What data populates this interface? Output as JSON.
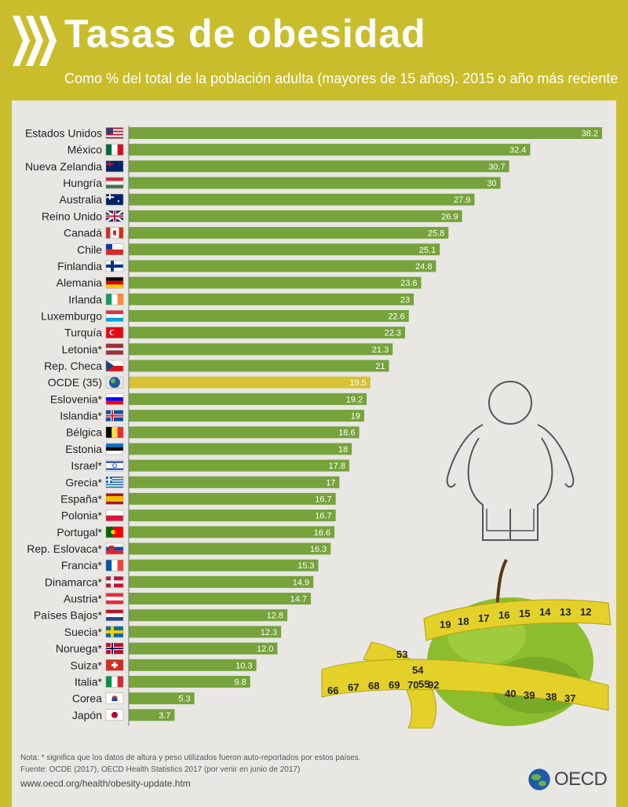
{
  "header": {
    "title": "Tasas de obesidad",
    "subtitle": "Como % del total de la población adulta (mayores de 15 años). 2015 o año más reciente"
  },
  "colors": {
    "header_bg": "#c9bd2b",
    "panel_bg": "#e8e7e3",
    "bar": "#76a33b",
    "bar_oecd": "#d7c235"
  },
  "chart_data": {
    "type": "bar",
    "orientation": "horizontal",
    "title": "Tasas de obesidad",
    "subtitle": "Como % del total de la población adulta (mayores de 15 años). 2015 o año más reciente",
    "xlim": [
      0,
      40
    ],
    "grid": false,
    "legend": "none",
    "categories": [
      "Estados Unidos",
      "México",
      "Nueva Zelandia",
      "Hungría",
      "Australia",
      "Reino Unido",
      "Canadá",
      "Chile",
      "Finlandia",
      "Alemania",
      "Irlanda",
      "Luxemburgo",
      "Turquía",
      "Letonia*",
      "Rep. Checa",
      "OCDE (35)",
      "Eslovenia*",
      "Islandia*",
      "Bélgica",
      "Estonia",
      "Israel*",
      "Grecia*",
      "España*",
      "Polonia*",
      "Portugal*",
      "Rep. Eslovaca*",
      "Francia*",
      "Dinamarca*",
      "Austria*",
      "Países Bajos*",
      "Suecia*",
      "Noruega*",
      "Suiza*",
      "Italia*",
      "Corea",
      "Japón"
    ],
    "values": [
      38.2,
      32.4,
      30.7,
      30,
      27.9,
      26.9,
      25.8,
      25.1,
      24.8,
      23.6,
      23,
      22.6,
      22.3,
      21.3,
      21,
      19.5,
      19.2,
      19,
      18.6,
      18,
      17.8,
      17,
      16.7,
      16.7,
      16.6,
      16.3,
      15.3,
      14.9,
      14.7,
      12.8,
      12.3,
      12.0,
      10.3,
      9.8,
      5.3,
      3.7
    ],
    "value_labels": [
      "38.2",
      "32.4",
      "30.7",
      "30",
      "27.9",
      "26.9",
      "25.8",
      "25.1",
      "24.8",
      "23.6",
      "23",
      "22.6",
      "22.3",
      "21.3",
      "21",
      "19.5",
      "19.2",
      "19",
      "18.6",
      "18",
      "17.8",
      "17",
      "16.7",
      "16.7",
      "16.6",
      "16.3",
      "15.3",
      "14.9",
      "14.7",
      "12.8",
      "12.3",
      "12.0",
      "10.3",
      "9.8",
      "5.3",
      "3.7"
    ],
    "flags": [
      "us",
      "mx",
      "nz",
      "hu",
      "au",
      "gb",
      "ca",
      "cl",
      "fi",
      "de",
      "ie",
      "lu",
      "tr",
      "lv",
      "cz",
      "oecd",
      "si",
      "is",
      "be",
      "ee",
      "il",
      "gr",
      "es",
      "pl",
      "pt",
      "sk",
      "fr",
      "dk",
      "at",
      "nl",
      "se",
      "no",
      "ch",
      "it",
      "kr",
      "jp"
    ],
    "highlight": "OCDE (35)"
  },
  "notes": {
    "nota": "Nota: * significa que los datos de altura y peso utilizados fueron auto-reportados por estos países.",
    "fuente": "Fuente: OCDE (2017), OECD Health Statistics 2017 (por venir en junio de 2017)",
    "url": "www.oecd.org/health/obesity-update.htm"
  },
  "logo": {
    "text": "OECD"
  },
  "tape_numbers": {
    "top": [
      "12",
      "13",
      "14",
      "15",
      "16",
      "17",
      "18",
      "19"
    ],
    "bottom": [
      "66",
      "67",
      "68",
      "69",
      "70",
      "92",
      "53",
      "54",
      "55",
      "38",
      "37",
      "39",
      "40"
    ]
  }
}
